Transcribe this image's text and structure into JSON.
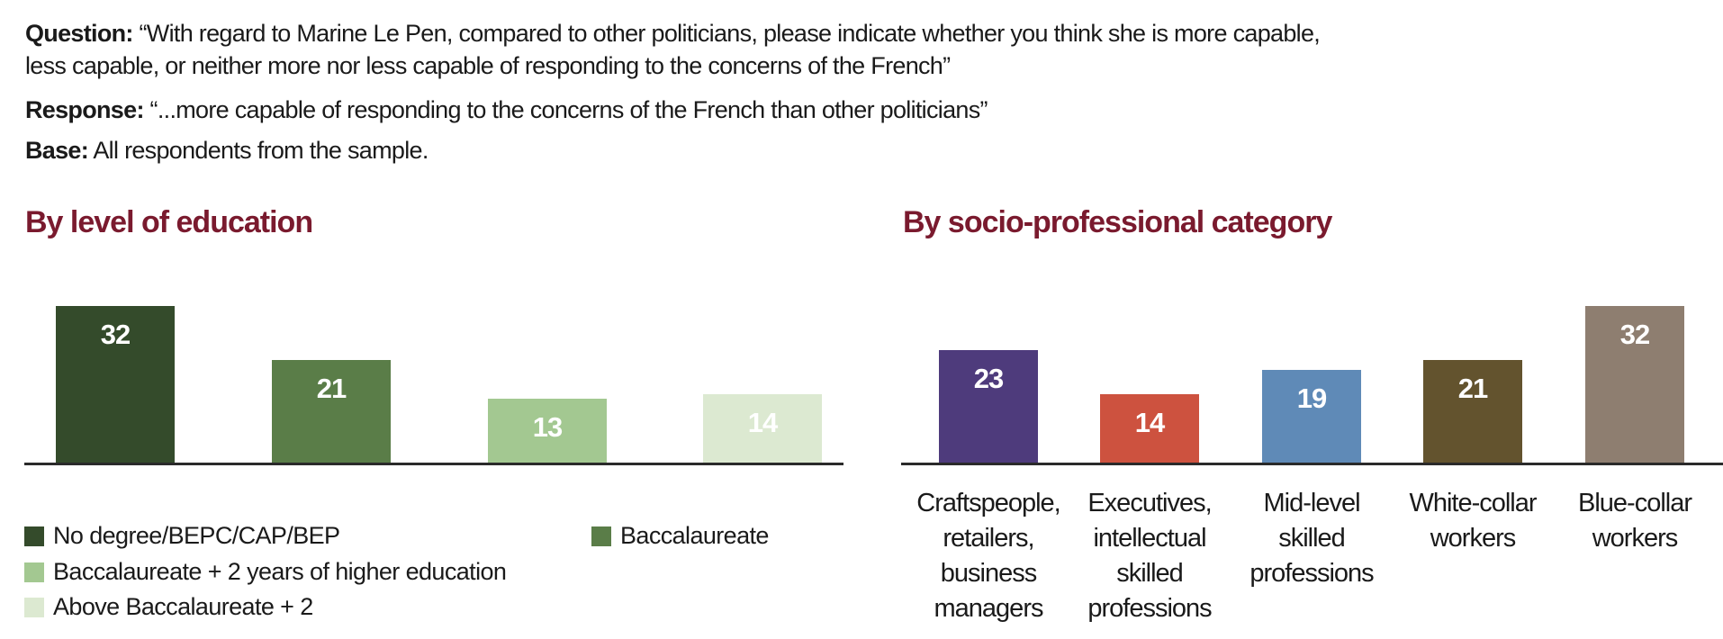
{
  "header": {
    "question_label": "Question:",
    "question_line1": "“With regard to Marine Le Pen, compared to other politicians, please indicate whether you think she is more capable,",
    "question_line2": "less capable, or neither more nor less capable of responding to the concerns of the French”",
    "response_label": "Response:",
    "response_text": "“...more capable of responding to the concerns of the French than other politicians”",
    "base_label": "Base:",
    "base_text": "All respondents from the sample."
  },
  "chart_data": [
    {
      "type": "bar",
      "title": "By level of education",
      "categories": [
        "No degree/BEPC/CAP/BEP",
        "Baccalaureate",
        "Baccalaureate + 2 years of higher education",
        "Above Baccalaureate + 2"
      ],
      "values": [
        32,
        21,
        13,
        14
      ],
      "colors": [
        "#344b2b",
        "#5a7d48",
        "#a3c891",
        "#dce9d1"
      ],
      "legend": "bottom",
      "grid": false,
      "ylim": [
        0,
        32
      ]
    },
    {
      "type": "bar",
      "title": "By socio-professional category",
      "categories": [
        "Craftspeople, retailers, business managers",
        "Executives, intellectual skilled professions",
        "Mid-level skilled professions",
        "White-collar workers",
        "Blue-collar workers"
      ],
      "category_lines": [
        [
          "Craftspeople,",
          "retailers,",
          "business",
          "managers"
        ],
        [
          "Executives,",
          "intellectual",
          "skilled",
          "professions"
        ],
        [
          "Mid-level",
          "skilled",
          "professions"
        ],
        [
          "White-collar",
          "workers"
        ],
        [
          "Blue-collar",
          "workers"
        ]
      ],
      "values": [
        23,
        14,
        19,
        21,
        32
      ],
      "colors": [
        "#4e3b7c",
        "#cd523f",
        "#5f8ab7",
        "#63532e",
        "#8e7e70"
      ],
      "grid": false,
      "ylim": [
        0,
        32
      ]
    }
  ]
}
